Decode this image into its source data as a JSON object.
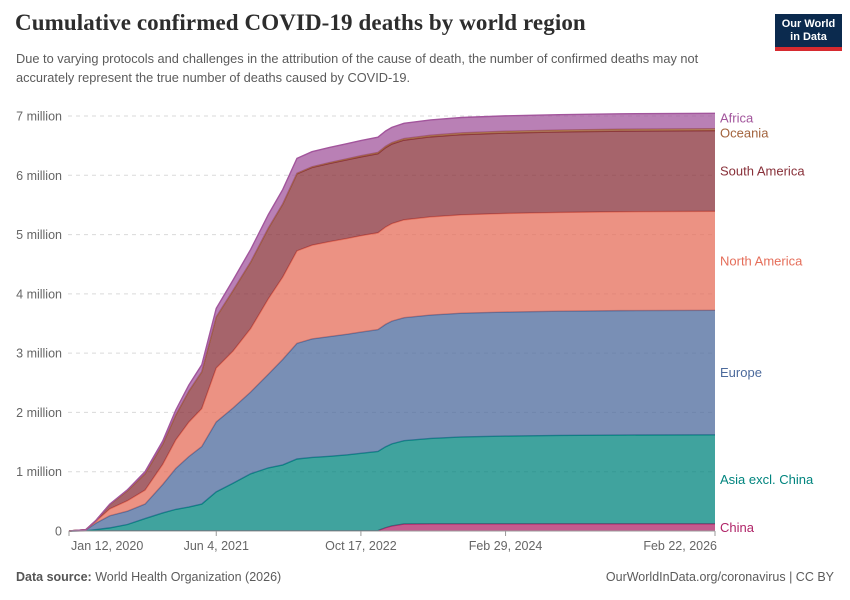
{
  "header": {
    "title": "Cumulative confirmed COVID-19 deaths by world region",
    "subtitle": "Due to varying protocols and challenges in the attribution of the cause of death, the number of confirmed deaths may not accurately represent the true number of deaths caused by COVID-19."
  },
  "logo": {
    "line1": "Our World",
    "line2": "in Data",
    "bg_color": "#0b2a4e",
    "accent_color": "#d62a2f"
  },
  "footer": {
    "source_label": "Data source:",
    "source_value": " World Health Organization (2026)",
    "credit": "OurWorldInData.org/coronavirus | CC BY"
  },
  "chart_data": {
    "type": "area",
    "stacked": true,
    "title": "Cumulative confirmed COVID-19 deaths by world region",
    "ylabel": "",
    "xlabel": "",
    "ylim": [
      0,
      7000000
    ],
    "grid": "dashed horizontal",
    "unit": "deaths",
    "y_ticks": [
      {
        "value": 0,
        "label": "0"
      },
      {
        "value": 1,
        "label": "1 million"
      },
      {
        "value": 2,
        "label": "2 million"
      },
      {
        "value": 3,
        "label": "3 million"
      },
      {
        "value": 4,
        "label": "4 million"
      },
      {
        "value": 5,
        "label": "5 million"
      },
      {
        "value": 6,
        "label": "6 million"
      },
      {
        "value": 7,
        "label": "7 million"
      }
    ],
    "x_ticks": [
      {
        "label": "Jan 12, 2020",
        "day": 0,
        "align": "start"
      },
      {
        "label": "Jun 4, 2021",
        "day": 509,
        "align": "middle"
      },
      {
        "label": "Oct 17, 2022",
        "day": 1009,
        "align": "middle"
      },
      {
        "label": "Feb 29, 2024",
        "day": 1509,
        "align": "middle"
      },
      {
        "label": "Feb 22, 2026",
        "day": 2233,
        "align": "end"
      }
    ],
    "x_dates": [
      "2020-01-12",
      "2020-03-10",
      "2020-04-15",
      "2020-06-01",
      "2020-08-01",
      "2020-10-01",
      "2020-12-01",
      "2021-01-15",
      "2021-03-01",
      "2021-04-15",
      "2021-06-04",
      "2021-08-01",
      "2021-10-01",
      "2021-12-01",
      "2022-01-20",
      "2022-03-10",
      "2022-05-01",
      "2022-07-01",
      "2022-09-01",
      "2022-10-17",
      "2022-12-15",
      "2023-01-10",
      "2023-02-01",
      "2023-03-15",
      "2023-06-15",
      "2023-10-01",
      "2024-02-29",
      "2024-09-01",
      "2025-04-01",
      "2026-02-22"
    ],
    "x_days": [
      0,
      58,
      94,
      141,
      202,
      263,
      324,
      369,
      414,
      459,
      509,
      567,
      628,
      689,
      739,
      788,
      840,
      901,
      963,
      1009,
      1068,
      1094,
      1116,
      1158,
      1250,
      1358,
      1509,
      1694,
      1906,
      2233
    ],
    "x_span_days": 2233,
    "values_unit": "millions of deaths",
    "series": [
      {
        "name": "China",
        "color": "#b02468",
        "values": [
          0,
          0.003,
          0.0046,
          0.0046,
          0.0046,
          0.0046,
          0.0046,
          0.0046,
          0.0046,
          0.0046,
          0.0046,
          0.0046,
          0.0046,
          0.0046,
          0.0046,
          0.0046,
          0.0052,
          0.0052,
          0.0052,
          0.0053,
          0.007,
          0.055,
          0.085,
          0.118,
          0.121,
          0.121,
          0.121,
          0.122,
          0.122,
          0.122
        ]
      },
      {
        "name": "Asia excl. China",
        "color": "#00847e",
        "values": [
          0,
          0.003,
          0.02,
          0.048,
          0.105,
          0.205,
          0.3,
          0.36,
          0.4,
          0.45,
          0.655,
          0.8,
          0.96,
          1.06,
          1.11,
          1.21,
          1.235,
          1.255,
          1.28,
          1.305,
          1.335,
          1.365,
          1.385,
          1.405,
          1.44,
          1.465,
          1.48,
          1.49,
          1.497,
          1.5
        ]
      },
      {
        "name": "Europe",
        "color": "#4c6a9c",
        "values": [
          0,
          0.012,
          0.11,
          0.205,
          0.225,
          0.245,
          0.48,
          0.69,
          0.85,
          0.97,
          1.18,
          1.27,
          1.38,
          1.58,
          1.78,
          1.95,
          2.0,
          2.02,
          2.035,
          2.045,
          2.055,
          2.065,
          2.07,
          2.075,
          2.082,
          2.088,
          2.092,
          2.095,
          2.098,
          2.1
        ]
      },
      {
        "name": "North America",
        "color": "#e56e5a",
        "values": [
          0,
          0.002,
          0.035,
          0.115,
          0.175,
          0.235,
          0.34,
          0.48,
          0.58,
          0.64,
          0.91,
          0.96,
          1.07,
          1.27,
          1.39,
          1.56,
          1.58,
          1.6,
          1.615,
          1.625,
          1.632,
          1.64,
          1.645,
          1.65,
          1.655,
          1.659,
          1.663,
          1.666,
          1.668,
          1.67
        ]
      },
      {
        "name": "South America",
        "color": "#883039",
        "values": [
          0,
          0.001,
          0.012,
          0.075,
          0.17,
          0.275,
          0.34,
          0.42,
          0.52,
          0.62,
          0.86,
          1.02,
          1.12,
          1.19,
          1.23,
          1.3,
          1.312,
          1.32,
          1.327,
          1.33,
          1.335,
          1.34,
          1.342,
          1.345,
          1.35,
          1.353,
          1.356,
          1.358,
          1.36,
          1.361
        ]
      },
      {
        "name": "Oceania",
        "color": "#a2633d",
        "values": [
          0,
          0,
          0,
          0,
          0,
          0.001,
          0.001,
          0.001,
          0.001,
          0.001,
          0.001,
          0.002,
          0.003,
          0.004,
          0.006,
          0.009,
          0.012,
          0.015,
          0.018,
          0.02,
          0.022,
          0.023,
          0.024,
          0.026,
          0.028,
          0.03,
          0.031,
          0.032,
          0.033,
          0.033
        ]
      },
      {
        "name": "Africa",
        "color": "#a2559c",
        "values": [
          0,
          0,
          0.002,
          0.006,
          0.016,
          0.036,
          0.053,
          0.083,
          0.104,
          0.118,
          0.144,
          0.175,
          0.212,
          0.228,
          0.24,
          0.252,
          0.254,
          0.255,
          0.2555,
          0.256,
          0.2565,
          0.257,
          0.2572,
          0.2576,
          0.258,
          0.2585,
          0.259,
          0.2592,
          0.2594,
          0.2596
        ]
      }
    ],
    "legend_position": "right-edge-labels",
    "style": {
      "fill_opacity": 0.75,
      "gridline_color": "#dadada",
      "axis_color": "#999999",
      "tick_label_color": "#666666"
    }
  }
}
